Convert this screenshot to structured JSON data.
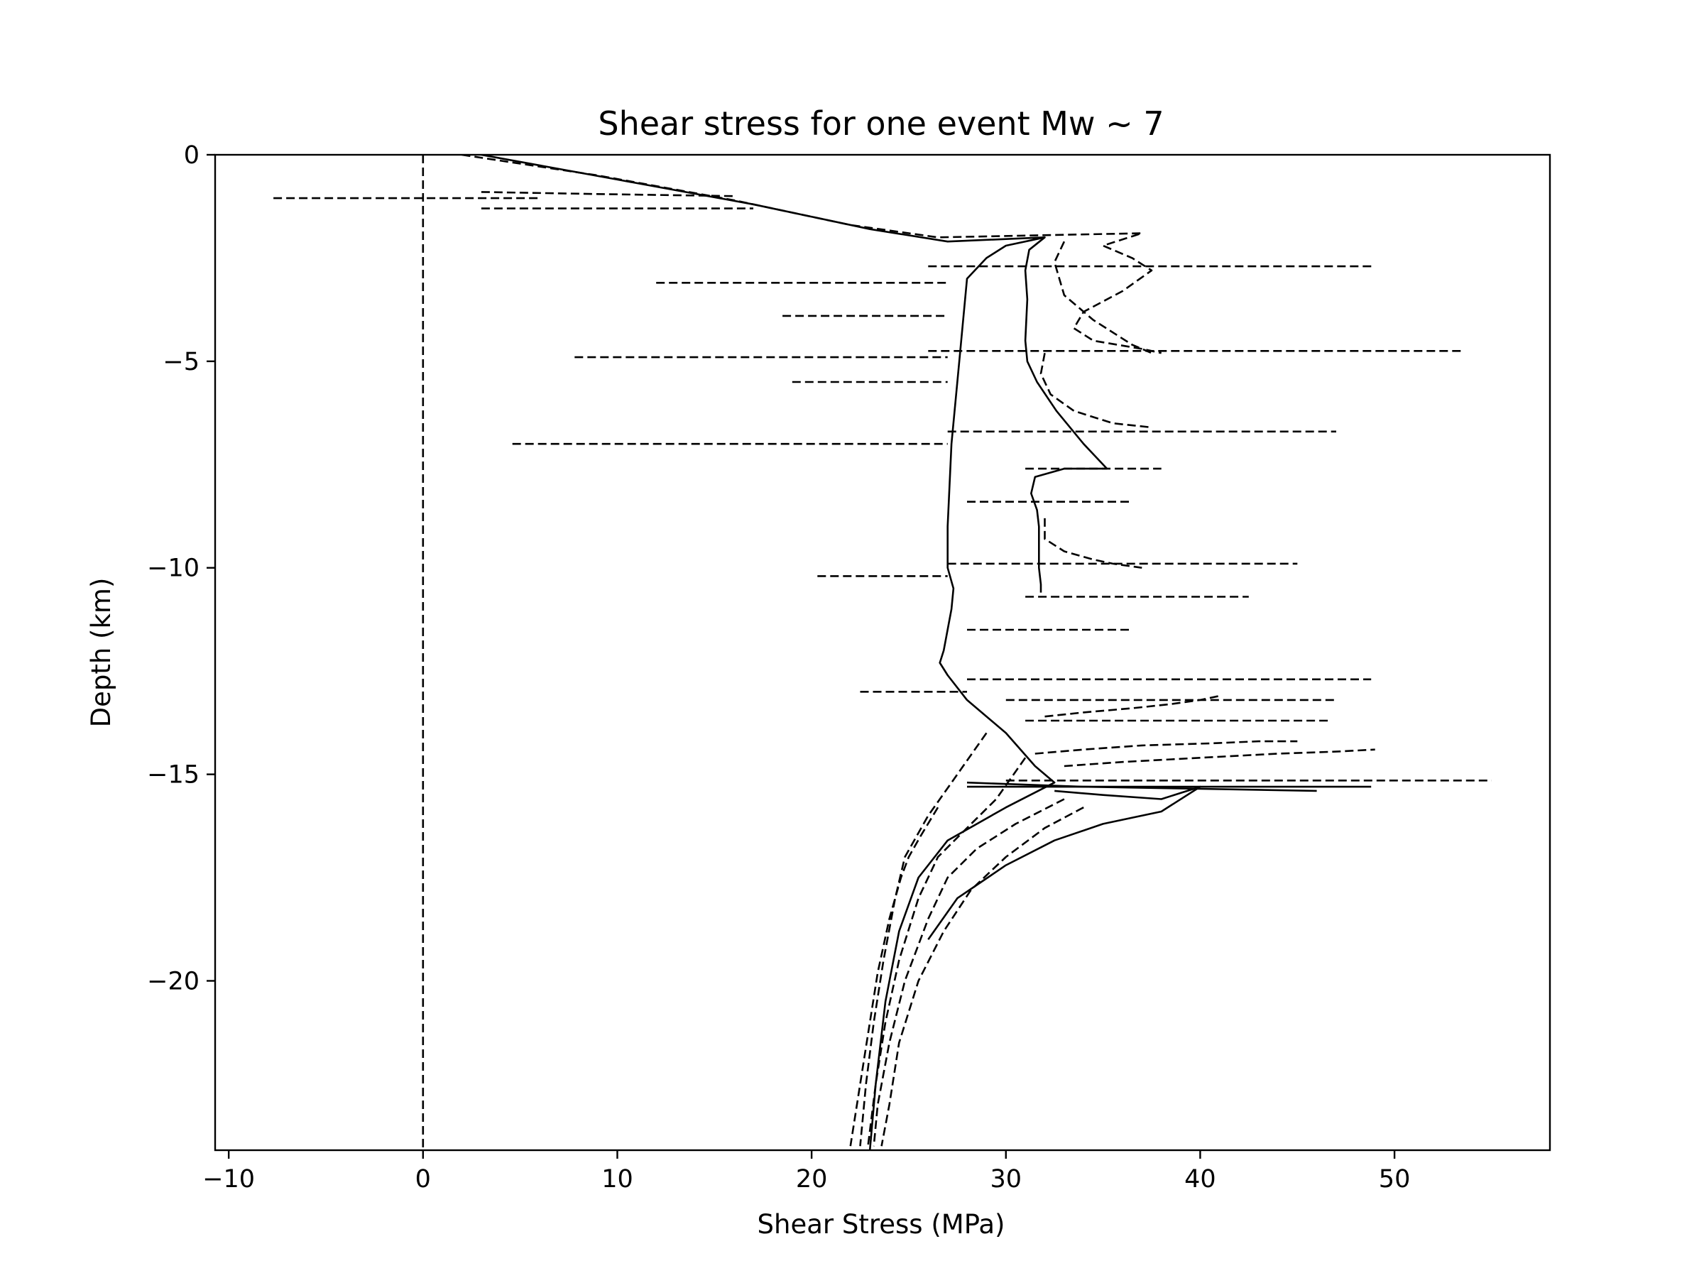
{
  "chart_data": {
    "type": "line",
    "title": "Shear stress for one event Mw ~ 7",
    "xlabel": "Shear Stress (MPa)",
    "ylabel": "Depth (km)",
    "xlim": [
      -10.7,
      58.0
    ],
    "ylim": [
      -24.1,
      0
    ],
    "xticks": [
      -10,
      0,
      10,
      20,
      30,
      40,
      50
    ],
    "yticks": [
      0,
      -5,
      -10,
      -15,
      -20
    ],
    "xtick_labels": [
      "−10",
      "0",
      "10",
      "20",
      "30",
      "40",
      "50"
    ],
    "ytick_labels": [
      "0",
      "−5",
      "−10",
      "−15",
      "−20"
    ],
    "grid": false,
    "legend": "none",
    "line_color": "#000000",
    "series": [
      {
        "style": "solid",
        "x": [
          3.0,
          10.0,
          17.0,
          23.0,
          27.0,
          32.0,
          30.0,
          29.0,
          28.0,
          27.6,
          27.2,
          27.0,
          27.0,
          27.3,
          27.2,
          26.8,
          26.6,
          27.0,
          28.0,
          30.0,
          31.5,
          32.5,
          30.0,
          27.0,
          25.5,
          24.5,
          23.8,
          23.3,
          23.0
        ],
        "y": [
          0.0,
          -0.6,
          -1.2,
          -1.8,
          -2.1,
          -2.0,
          -2.2,
          -2.5,
          -3.0,
          -5.0,
          -7.0,
          -9.0,
          -10.0,
          -10.5,
          -11.0,
          -12.0,
          -12.3,
          -12.6,
          -13.2,
          -14.0,
          -14.8,
          -15.2,
          -15.8,
          -16.6,
          -17.5,
          -18.8,
          -20.5,
          -22.5,
          -24.1
        ]
      },
      {
        "style": "solid",
        "x": [
          32.0,
          31.2,
          31.0,
          31.1,
          31.0,
          31.1,
          31.6,
          32.6,
          34.0,
          35.2
        ],
        "y": [
          -2.0,
          -2.3,
          -2.8,
          -3.5,
          -4.5,
          -5.0,
          -5.5,
          -6.2,
          -7.0,
          -7.6
        ]
      },
      {
        "style": "solid",
        "x": [
          35.2,
          33.0,
          31.5,
          31.3,
          31.6,
          31.7,
          31.7,
          31.7,
          31.8,
          31.8
        ],
        "y": [
          -7.6,
          -7.6,
          -7.8,
          -8.2,
          -8.6,
          -9.0,
          -9.5,
          -10.0,
          -10.4,
          -10.6
        ]
      },
      {
        "style": "solid",
        "x": [
          28.0,
          34.0,
          40.0,
          46.0
        ],
        "y": [
          -15.2,
          -15.3,
          -15.35,
          -15.4
        ]
      },
      {
        "style": "solid",
        "x": [
          32.5,
          35.0,
          38.0,
          40.0,
          38.0,
          35.0,
          32.5,
          30.0,
          27.5,
          26.0
        ],
        "y": [
          -15.4,
          -15.5,
          -15.6,
          -15.3,
          -15.9,
          -16.2,
          -16.6,
          -17.2,
          -18.0,
          -19.0
        ]
      },
      {
        "style": "dashed",
        "x": [
          0,
          0
        ],
        "y": [
          0,
          -24.1
        ]
      },
      {
        "style": "dashed",
        "x": [
          2.0,
          9.0,
          16.0,
          22.0,
          26.5,
          37.0,
          35.0,
          36.5,
          37.5,
          36.0,
          34.0,
          33.5,
          34.5,
          37.0,
          38.0
        ],
        "y": [
          0.0,
          -0.5,
          -1.1,
          -1.7,
          -2.0,
          -1.9,
          -2.2,
          -2.5,
          -2.8,
          -3.3,
          -3.8,
          -4.2,
          -4.5,
          -4.7,
          -4.8
        ]
      },
      {
        "style": "dashed",
        "x": [
          33.0,
          32.5,
          33.0,
          34.5,
          36.5,
          37.5
        ],
        "y": [
          -2.1,
          -2.6,
          -3.4,
          -4.0,
          -4.6,
          -4.8
        ]
      },
      {
        "style": "dashed",
        "x": [
          32.0,
          31.8,
          32.3,
          33.5,
          35.5,
          37.5
        ],
        "y": [
          -4.8,
          -5.3,
          -5.8,
          -6.2,
          -6.5,
          -6.6
        ]
      },
      {
        "style": "dashed",
        "x": [
          32.0,
          32.0,
          33.0,
          34.5,
          35.5,
          37.0
        ],
        "y": [
          -8.8,
          -9.3,
          -9.6,
          -9.8,
          -9.9,
          -10.0
        ]
      },
      {
        "style": "dashed",
        "x": [
          32.0,
          34.0,
          36.5,
          38.5,
          40.0,
          41.0
        ],
        "y": [
          -13.6,
          -13.5,
          -13.4,
          -13.3,
          -13.2,
          -13.1
        ]
      },
      {
        "style": "dashed",
        "x": [
          31.5,
          34.0,
          37.0,
          40.5,
          43.0,
          45.0
        ],
        "y": [
          -14.5,
          -14.4,
          -14.3,
          -14.25,
          -14.2,
          -14.2
        ]
      },
      {
        "style": "dashed",
        "x": [
          33.0,
          36.0,
          40.0,
          44.0,
          47.0,
          49.0
        ],
        "y": [
          -14.8,
          -14.7,
          -14.6,
          -14.5,
          -14.45,
          -14.4
        ]
      },
      {
        "style": "dashed",
        "x": [
          29.0,
          27.5,
          26.0,
          24.8,
          24.3,
          23.7,
          23.2,
          22.8,
          22.5
        ],
        "y": [
          -14.0,
          -15.0,
          -16.0,
          -17.0,
          -18.0,
          -19.5,
          -21.0,
          -22.5,
          -24.0
        ]
      },
      {
        "style": "dashed",
        "x": [
          31.0,
          29.5,
          28.0,
          26.5,
          25.5,
          24.5,
          23.8,
          23.3,
          22.9
        ],
        "y": [
          -14.6,
          -15.6,
          -16.3,
          -17.0,
          -18.0,
          -19.5,
          -21.0,
          -22.5,
          -24.0
        ]
      },
      {
        "style": "dashed",
        "x": [
          33.0,
          30.5,
          28.5,
          27.0,
          26.0,
          24.8,
          24.0,
          23.4,
          23.2
        ],
        "y": [
          -15.6,
          -16.2,
          -16.8,
          -17.5,
          -18.5,
          -20.0,
          -21.5,
          -23.0,
          -24.0
        ]
      },
      {
        "style": "dashed",
        "x": [
          34.0,
          32.0,
          30.0,
          28.2,
          26.8,
          25.5,
          24.5,
          24.0,
          23.6
        ],
        "y": [
          -15.8,
          -16.3,
          -17.0,
          -17.8,
          -18.8,
          -20.0,
          -21.5,
          -23.0,
          -24.0
        ]
      },
      {
        "style": "dashed",
        "x": [
          26.5,
          25.6,
          25.0,
          24.6,
          24.0,
          23.4,
          23.0,
          22.5,
          22.0
        ],
        "y": [
          -15.8,
          -16.5,
          -17.0,
          -17.5,
          -18.5,
          -19.8,
          -21.0,
          -22.5,
          -24.0
        ]
      },
      {
        "style": "dashed",
        "x": [
          -7.7,
          3.0,
          6.0
        ],
        "y": [
          -1.05,
          -1.05,
          -1.05
        ]
      },
      {
        "style": "dashed",
        "x": [
          3.0,
          9.0,
          16.0
        ],
        "y": [
          -0.9,
          -0.95,
          -1.0
        ]
      },
      {
        "style": "dashed",
        "x": [
          3.0,
          10.0,
          17.0
        ],
        "y": [
          -1.3,
          -1.3,
          -1.3
        ]
      },
      {
        "style": "dashed",
        "x": [
          26.0,
          49.0
        ],
        "y": [
          -2.7,
          -2.7
        ]
      },
      {
        "style": "dashed",
        "x": [
          12.0,
          27.0
        ],
        "y": [
          -3.1,
          -3.1
        ]
      },
      {
        "style": "dashed",
        "x": [
          18.5,
          27.0
        ],
        "y": [
          -3.9,
          -3.9
        ]
      },
      {
        "style": "dashed",
        "x": [
          26.0,
          53.5
        ],
        "y": [
          -4.75,
          -4.75
        ]
      },
      {
        "style": "dashed",
        "x": [
          7.8,
          27.0
        ],
        "y": [
          -4.9,
          -4.9
        ]
      },
      {
        "style": "dashed",
        "x": [
          19.0,
          27.0
        ],
        "y": [
          -5.5,
          -5.5
        ]
      },
      {
        "style": "dashed",
        "x": [
          27.0,
          47.0
        ],
        "y": [
          -6.7,
          -6.7
        ]
      },
      {
        "style": "dashed",
        "x": [
          4.6,
          27.0
        ],
        "y": [
          -7.0,
          -7.0
        ]
      },
      {
        "style": "dashed",
        "x": [
          31.0,
          38.0
        ],
        "y": [
          -7.6,
          -7.6
        ]
      },
      {
        "style": "dashed",
        "x": [
          28.0,
          36.5
        ],
        "y": [
          -8.4,
          -8.4
        ]
      },
      {
        "style": "dashed",
        "x": [
          27.0,
          45.0
        ],
        "y": [
          -9.9,
          -9.9
        ]
      },
      {
        "style": "dashed",
        "x": [
          20.3,
          27.0
        ],
        "y": [
          -10.2,
          -10.2
        ]
      },
      {
        "style": "dashed",
        "x": [
          31.0,
          42.5
        ],
        "y": [
          -10.7,
          -10.7
        ]
      },
      {
        "style": "dashed",
        "x": [
          28.0,
          36.5
        ],
        "y": [
          -11.5,
          -11.5
        ]
      },
      {
        "style": "dashed",
        "x": [
          28.0,
          48.8
        ],
        "y": [
          -12.7,
          -12.7
        ]
      },
      {
        "style": "dashed",
        "x": [
          22.5,
          28.0
        ],
        "y": [
          -13.0,
          -13.0
        ]
      },
      {
        "style": "dashed",
        "x": [
          30.0,
          47.0
        ],
        "y": [
          -13.2,
          -13.2
        ]
      },
      {
        "style": "dashed",
        "x": [
          31.0,
          46.7
        ],
        "y": [
          -13.7,
          -13.7
        ]
      },
      {
        "style": "dashed",
        "x": [
          30.0,
          55.0
        ],
        "y": [
          -15.15,
          -15.15
        ]
      },
      {
        "style": "solid",
        "x": [
          28.0,
          48.8
        ],
        "y": [
          -15.3,
          -15.3
        ]
      }
    ]
  }
}
